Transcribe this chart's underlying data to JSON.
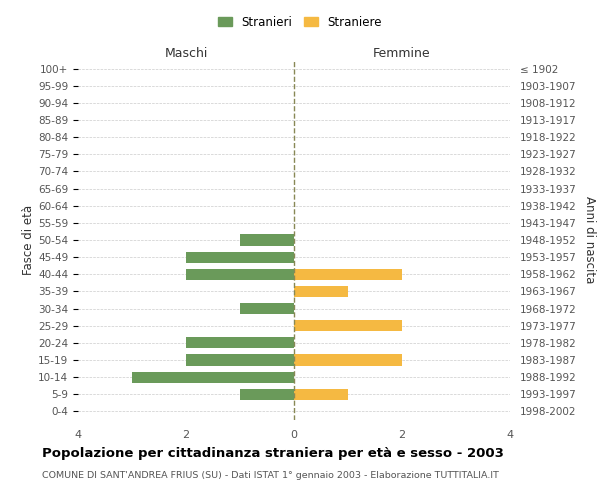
{
  "age_groups": [
    "100+",
    "95-99",
    "90-94",
    "85-89",
    "80-84",
    "75-79",
    "70-74",
    "65-69",
    "60-64",
    "55-59",
    "50-54",
    "45-49",
    "40-44",
    "35-39",
    "30-34",
    "25-29",
    "20-24",
    "15-19",
    "10-14",
    "5-9",
    "0-4"
  ],
  "birth_years": [
    "≤ 1902",
    "1903-1907",
    "1908-1912",
    "1913-1917",
    "1918-1922",
    "1923-1927",
    "1928-1932",
    "1933-1937",
    "1938-1942",
    "1943-1947",
    "1948-1952",
    "1953-1957",
    "1958-1962",
    "1963-1967",
    "1968-1972",
    "1973-1977",
    "1978-1982",
    "1983-1987",
    "1988-1992",
    "1993-1997",
    "1998-2002"
  ],
  "maschi": [
    0,
    0,
    0,
    0,
    0,
    0,
    0,
    0,
    0,
    0,
    1,
    2,
    2,
    0,
    1,
    0,
    2,
    2,
    3,
    1,
    0
  ],
  "femmine": [
    0,
    0,
    0,
    0,
    0,
    0,
    0,
    0,
    0,
    0,
    0,
    0,
    2,
    1,
    0,
    2,
    0,
    2,
    0,
    1,
    0
  ],
  "color_maschi": "#6a9a5a",
  "color_femmine": "#f5b942",
  "xlim": 4,
  "title": "Popolazione per cittadinanza straniera per età e sesso - 2003",
  "subtitle": "COMUNE DI SANT'ANDREA FRIUS (SU) - Dati ISTAT 1° gennaio 2003 - Elaborazione TUTTITALIA.IT",
  "label_maschi": "Stranieri",
  "label_femmine": "Straniere",
  "ylabel_left": "Fasce di età",
  "ylabel_right": "Anni di nascita",
  "header_maschi": "Maschi",
  "header_femmine": "Femmine",
  "background_color": "#ffffff",
  "grid_color": "#cccccc"
}
